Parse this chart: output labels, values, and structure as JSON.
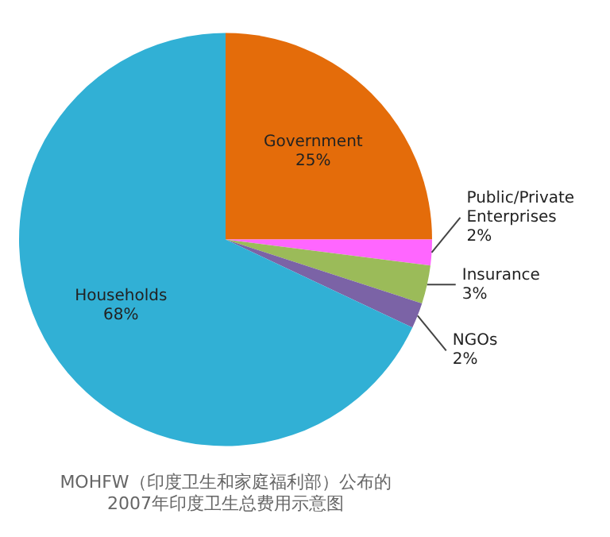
{
  "chart_data": {
    "type": "pie",
    "title": "MOHFW（印度卫生和家庭福利部）公布的\n2007年印度卫生总费用示意图",
    "categories": [
      "Government",
      "Public/Private\nEnterprises",
      "Insurance",
      "NGOs",
      "Households"
    ],
    "values": [
      25,
      2,
      3,
      2,
      68
    ],
    "value_labels": [
      "25%",
      "2%",
      "3%",
      "2%",
      "68%"
    ],
    "colors": [
      "#e46c0a",
      "#ff66ff",
      "#9bbb59",
      "#7b63a6",
      "#31b0d5"
    ],
    "legend": false
  }
}
